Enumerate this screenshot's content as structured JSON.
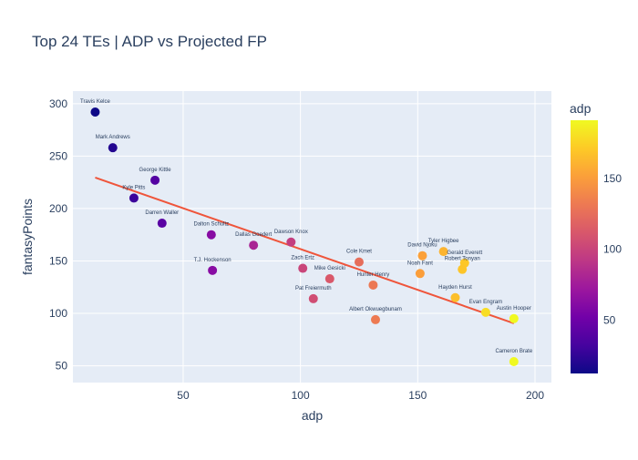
{
  "chart_data": {
    "type": "scatter",
    "title": "Top 24 TEs | ADP vs Projected FP",
    "xlabel": "adp",
    "ylabel": "fantasyPoints",
    "xlim": [
      3,
      207
    ],
    "ylim": [
      34,
      312
    ],
    "x_ticks": [
      50,
      100,
      150,
      200
    ],
    "y_ticks": [
      50,
      100,
      150,
      200,
      250,
      300
    ],
    "grid": true,
    "colorbar": {
      "title": "adp",
      "min": 12.5,
      "max": 191,
      "ticks": [
        50,
        100,
        150
      ],
      "colorscale": [
        "#0d0887",
        "#46039f",
        "#7201a8",
        "#9c179e",
        "#bd3786",
        "#d8576b",
        "#ed7953",
        "#fb9f3a",
        "#fdca26",
        "#f0f921"
      ]
    },
    "trendline": {
      "color": "#ef553b",
      "x": [
        12.5,
        191
      ],
      "y": [
        229.5,
        90.5
      ]
    },
    "points": [
      {
        "name": "Travis Kelce",
        "x": 12.5,
        "y": 292
      },
      {
        "name": "Mark Andrews",
        "x": 20,
        "y": 258
      },
      {
        "name": "George Kittle",
        "x": 38,
        "y": 227
      },
      {
        "name": "Kyle Pitts",
        "x": 29,
        "y": 210
      },
      {
        "name": "Darren Waller",
        "x": 41,
        "y": 186
      },
      {
        "name": "Dalton Schultz",
        "x": 62,
        "y": 175
      },
      {
        "name": "T.J. Hockenson",
        "x": 62.5,
        "y": 141
      },
      {
        "name": "Dallas Goedert",
        "x": 80,
        "y": 165
      },
      {
        "name": "Dawson Knox",
        "x": 96,
        "y": 168
      },
      {
        "name": "Zach Ertz",
        "x": 101,
        "y": 143
      },
      {
        "name": "Mike Gesicki",
        "x": 112.5,
        "y": 133
      },
      {
        "name": "Pat Freiermuth",
        "x": 105.5,
        "y": 114
      },
      {
        "name": "Cole Kmet",
        "x": 125,
        "y": 149
      },
      {
        "name": "Hunter Henry",
        "x": 131,
        "y": 127
      },
      {
        "name": "Albert Okwuegbunam",
        "x": 132,
        "y": 94
      },
      {
        "name": "David Njoku",
        "x": 152,
        "y": 155
      },
      {
        "name": "Noah Fant",
        "x": 151,
        "y": 138
      },
      {
        "name": "Tyler Higbee",
        "x": 161,
        "y": 159
      },
      {
        "name": "Gerald Everett",
        "x": 170,
        "y": 148
      },
      {
        "name": "Robert Tonyan",
        "x": 169,
        "y": 142
      },
      {
        "name": "Hayden Hurst",
        "x": 166,
        "y": 115
      },
      {
        "name": "Evan Engram",
        "x": 179,
        "y": 101
      },
      {
        "name": "Austin Hooper",
        "x": 191,
        "y": 95
      },
      {
        "name": "Cameron Brate",
        "x": 191,
        "y": 54
      }
    ]
  }
}
